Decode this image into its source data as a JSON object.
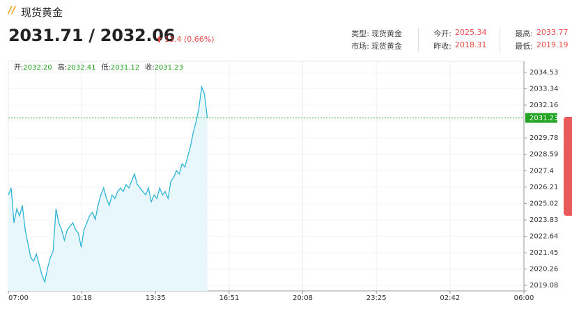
{
  "header": {
    "title": "现货黄金",
    "price": "2031.71 / 2032.06",
    "change": "13.4 (0.66%)",
    "info": [
      [
        {
          "label": "类型:",
          "value": "现货黄金"
        },
        {
          "label": "今开:",
          "value": "2025.34"
        },
        {
          "label": "最高:",
          "value": "2033.77"
        }
      ],
      [
        {
          "label": "市场:",
          "value": "现货黄金"
        },
        {
          "label": "昨收:",
          "value": "2018.31"
        },
        {
          "label": "最低:",
          "value": "2019.19"
        }
      ]
    ]
  },
  "chart_data": {
    "type": "area",
    "ohlc": [
      {
        "label": "开:",
        "value": "2032.20"
      },
      {
        "label": "高:",
        "value": "2032.41"
      },
      {
        "label": "低:",
        "value": "2031.12"
      },
      {
        "label": "收:",
        "value": "2031.23"
      }
    ],
    "x": [
      0,
      7.5,
      15,
      22.5,
      30,
      37.5,
      45,
      52.5,
      60,
      67.5,
      75,
      82.5,
      90,
      97.5,
      105,
      112.5,
      120,
      127.5,
      135,
      142.5,
      150,
      157.5,
      165,
      172.5,
      180,
      187.5,
      195,
      202.5,
      210,
      217.5,
      225,
      232.5,
      240,
      247.5,
      255,
      262.5,
      270,
      277.5,
      285,
      292.5,
      300,
      307.5,
      315,
      322.5,
      330,
      337.5,
      345,
      352.5,
      360,
      367.5,
      375,
      382.5,
      390,
      397.5,
      405,
      412.5,
      420,
      427.5,
      435,
      442.5,
      450,
      457.5,
      465,
      472.5,
      480,
      487.5,
      495,
      502.5,
      510,
      517.5,
      525,
      532.5
    ],
    "values": [
      2025.64,
      2026.15,
      2023.62,
      2024.63,
      2024.13,
      2024.88,
      2023.12,
      2022.11,
      2021.1,
      2020.84,
      2021.35,
      2020.59,
      2019.83,
      2019.33,
      2020.34,
      2021.1,
      2021.6,
      2024.63,
      2023.62,
      2023.12,
      2022.36,
      2023.12,
      2023.37,
      2023.62,
      2023.12,
      2022.86,
      2021.85,
      2023.12,
      2023.62,
      2024.13,
      2024.38,
      2023.87,
      2024.88,
      2025.64,
      2026.15,
      2025.39,
      2024.88,
      2025.64,
      2025.39,
      2025.89,
      2026.15,
      2025.89,
      2026.4,
      2026.15,
      2026.65,
      2027.16,
      2026.4,
      2026.15,
      2025.89,
      2025.64,
      2026.15,
      2025.14,
      2025.64,
      2025.39,
      2026.15,
      2025.64,
      2025.89,
      2025.39,
      2026.65,
      2026.9,
      2027.41,
      2027.16,
      2027.91,
      2027.66,
      2028.42,
      2029.18,
      2030.19,
      2030.94,
      2031.95,
      2033.47,
      2032.96,
      2031.23
    ],
    "color": "#2db5d6",
    "fill": "#e8f7fb",
    "xlim": [
      0,
      1380
    ],
    "xticks": [
      {
        "value": 0,
        "label": "07:00"
      },
      {
        "value": 197,
        "label": "10:18"
      },
      {
        "value": 394,
        "label": "13:35"
      },
      {
        "value": 591,
        "label": "16:51"
      },
      {
        "value": 788,
        "label": "20:08"
      },
      {
        "value": 985,
        "label": "23:25"
      },
      {
        "value": 1182,
        "label": "02:42"
      },
      {
        "value": 1380,
        "label": "06:00"
      }
    ],
    "ylim": [
      2018.68,
      2035.34
    ],
    "yticks": [
      2034.53,
      2033.34,
      2032.16,
      2029.78,
      2028.59,
      2027.4,
      2026.21,
      2025.02,
      2023.83,
      2022.64,
      2021.45,
      2020.26,
      2019.08
    ],
    "last": 2031.23,
    "last_color": "#22a322",
    "grid": true
  }
}
